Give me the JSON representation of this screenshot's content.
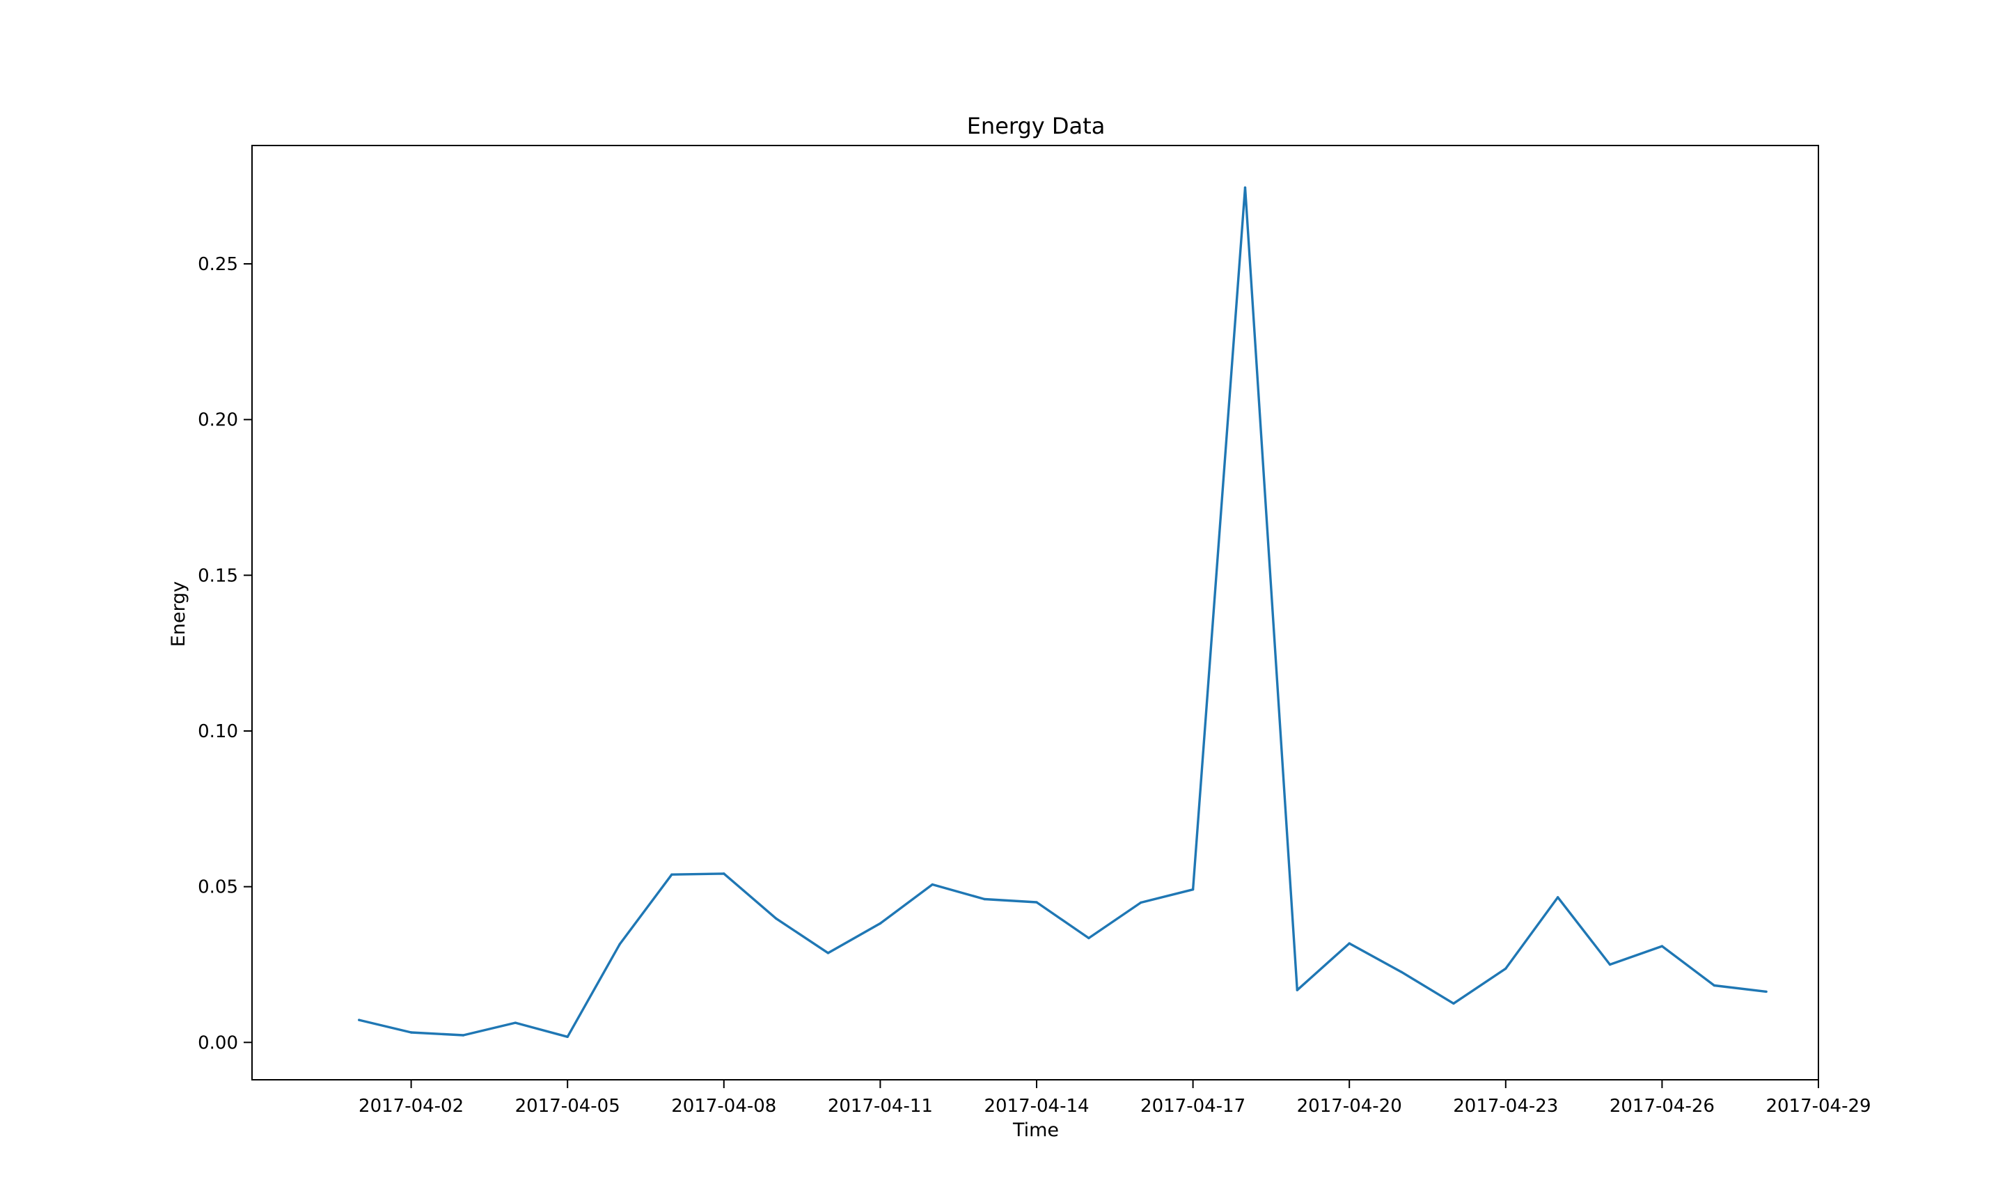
{
  "chart_data": {
    "type": "line",
    "title": "Energy Data",
    "xlabel": "Time",
    "ylabel": "Energy",
    "x_ticks": [
      "2017-04-02",
      "2017-04-05",
      "2017-04-08",
      "2017-04-11",
      "2017-04-14",
      "2017-04-17",
      "2017-04-20",
      "2017-04-23",
      "2017-04-26",
      "2017-04-29"
    ],
    "y_ticks": [
      "0.00",
      "0.05",
      "0.10",
      "0.15",
      "0.20",
      "0.25"
    ],
    "xlim": [
      "2017-03-30",
      "2017-04-29"
    ],
    "ylim": [
      -0.012,
      0.288
    ],
    "grid": false,
    "series": [
      {
        "color": "#1f77b4",
        "x": [
          "2017-04-01",
          "2017-04-02",
          "2017-04-03",
          "2017-04-04",
          "2017-04-05",
          "2017-04-06",
          "2017-04-07",
          "2017-04-08",
          "2017-04-09",
          "2017-04-10",
          "2017-04-11",
          "2017-04-12",
          "2017-04-13",
          "2017-04-14",
          "2017-04-15",
          "2017-04-16",
          "2017-04-17",
          "2017-04-18",
          "2017-04-19",
          "2017-04-20",
          "2017-04-21",
          "2017-04-22",
          "2017-04-23",
          "2017-04-24",
          "2017-04-25",
          "2017-04-26",
          "2017-04-27",
          "2017-04-28"
        ],
        "y": [
          0.0072,
          0.0032,
          0.0023,
          0.0063,
          0.0018,
          0.0315,
          0.0539,
          0.0542,
          0.0398,
          0.0287,
          0.0382,
          0.0507,
          0.046,
          0.045,
          0.0335,
          0.0449,
          0.0491,
          0.2745,
          0.0168,
          0.0318,
          0.0226,
          0.0125,
          0.0237,
          0.0466,
          0.025,
          0.0309,
          0.0183,
          0.0163
        ]
      }
    ]
  }
}
